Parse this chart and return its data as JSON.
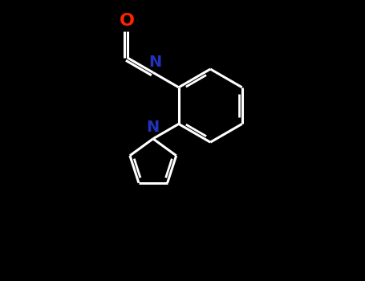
{
  "background_color": "#000000",
  "bond_color_white": "#ffffff",
  "atom_colors": {
    "O": "#ff2200",
    "N_imine": "#2233bb",
    "N_pyrrole": "#2233bb"
  },
  "line_width": 2.2,
  "font_size_atoms": 14,
  "canvas_xlim": [
    0,
    10
  ],
  "canvas_ylim": [
    0,
    8
  ]
}
